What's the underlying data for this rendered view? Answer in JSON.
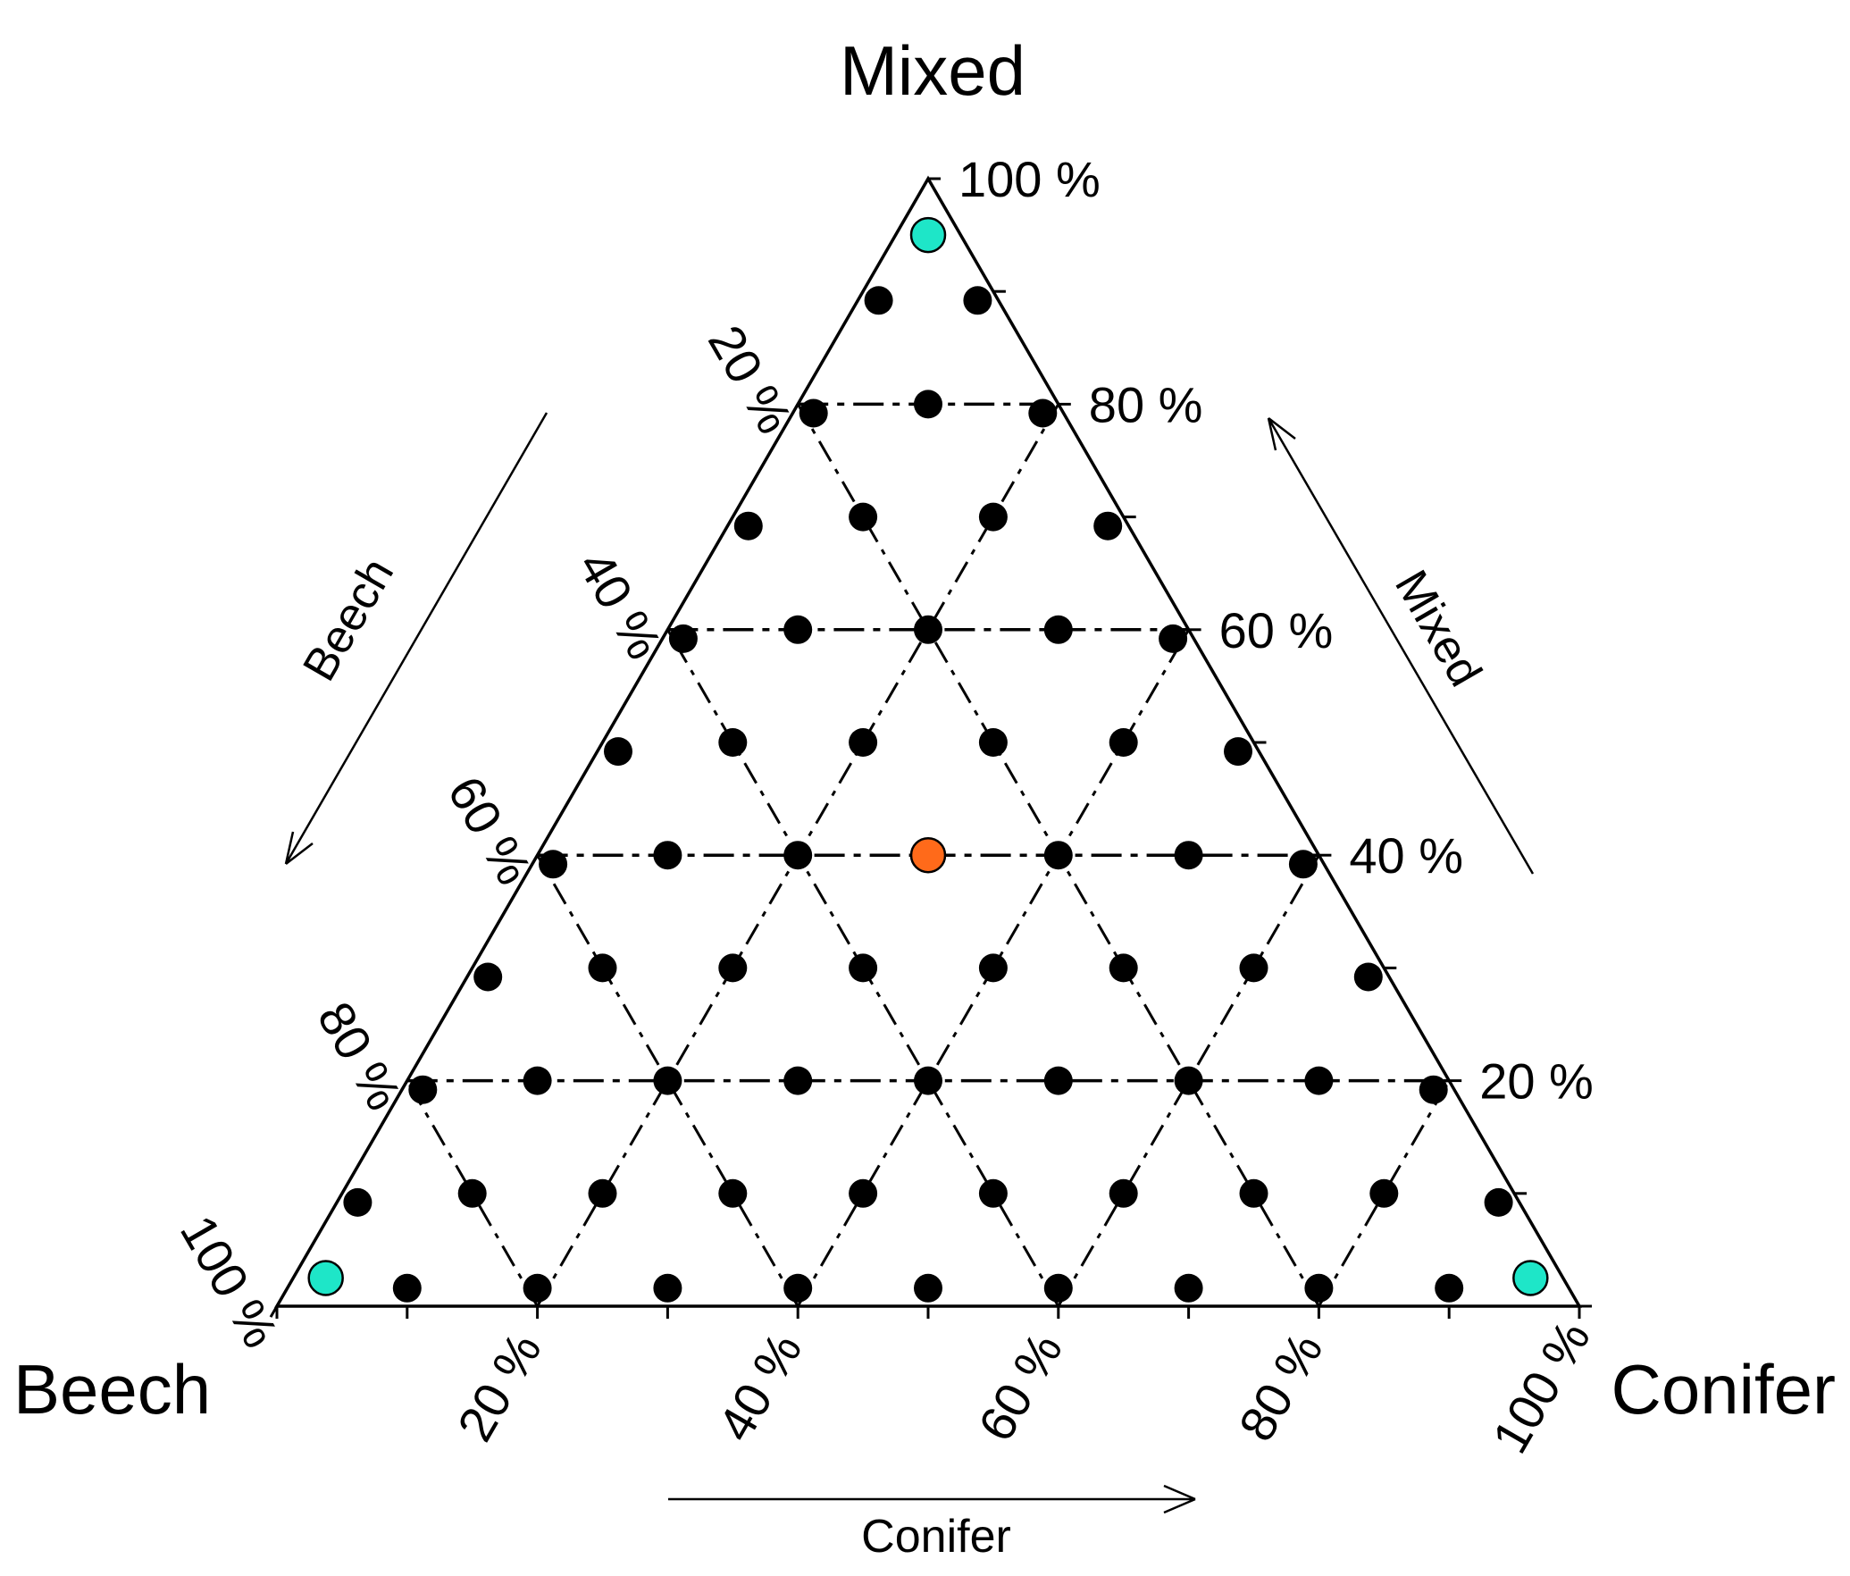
{
  "chart_data": {
    "type": "scatter",
    "subtype": "ternary",
    "corners": {
      "top": "Mixed",
      "left": "Beech",
      "right": "Conifer"
    },
    "axis_names": {
      "left": "Beech",
      "right": "Mixed",
      "bottom": "Conifer"
    },
    "tick_labels": {
      "mixed": [
        "20 %",
        "40 %",
        "60 %",
        "80 %",
        "100 %"
      ],
      "beech": [
        "20 %",
        "40 %",
        "60 %",
        "80 %",
        "100 %"
      ],
      "conifer": [
        "20 %",
        "40 %",
        "60 %",
        "80 %",
        "100 %"
      ]
    },
    "grid_levels": [
      20,
      40,
      60,
      80
    ],
    "point_spacing_pct": 10,
    "highlight_points": [
      {
        "beech": 2.5,
        "conifer": 2.5,
        "mixed": 95,
        "color": "#1ee6c8"
      },
      {
        "beech": 95,
        "conifer": 2.5,
        "mixed": 2.5,
        "color": "#1ee6c8"
      },
      {
        "beech": 2.5,
        "conifer": 95,
        "mixed": 2.5,
        "color": "#1ee6c8"
      },
      {
        "beech": 30,
        "conifer": 30,
        "mixed": 40,
        "color": "#ff6a1a"
      }
    ],
    "colors": {
      "points": "#000000",
      "frame": "#000000"
    }
  }
}
